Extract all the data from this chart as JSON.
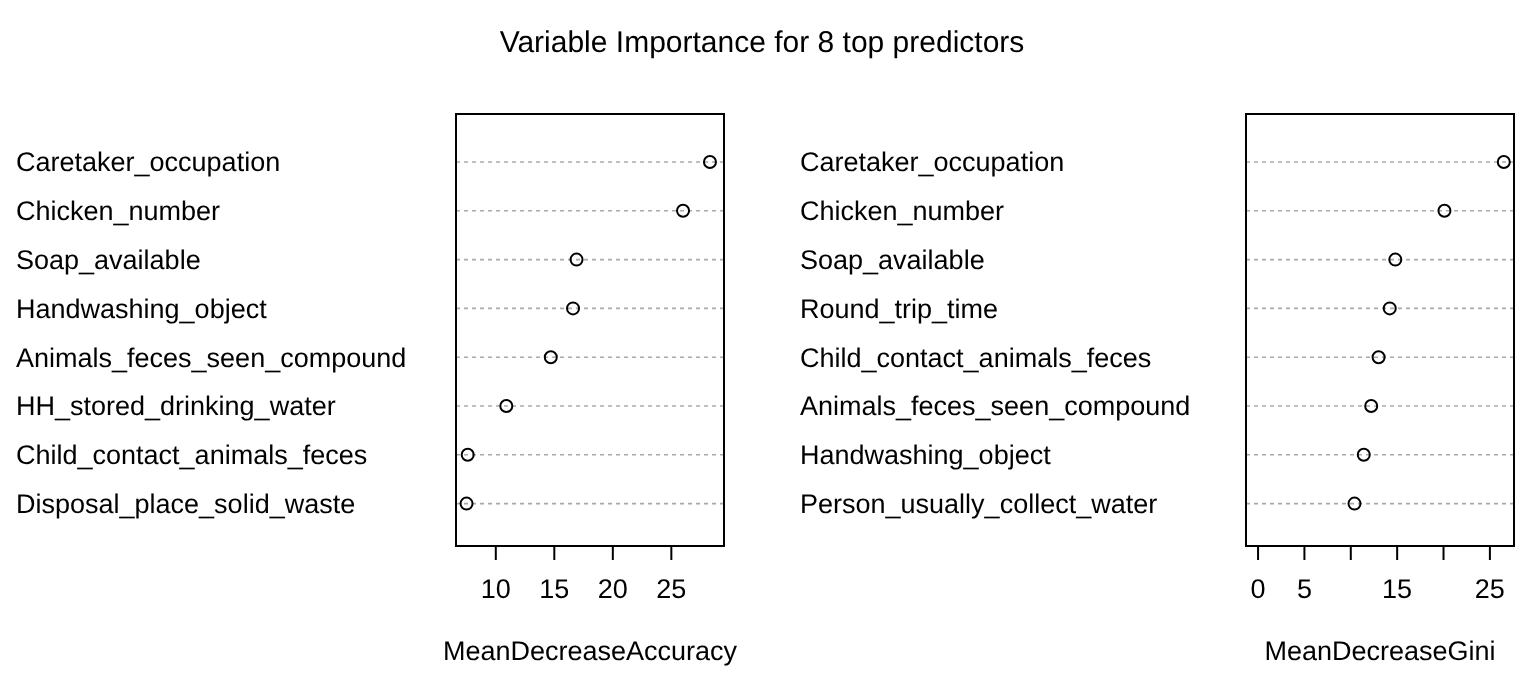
{
  "chart_data": [
    {
      "type": "scatter",
      "title": "Variable Importance for 8 top predictors",
      "orientation": "horizontal",
      "marker": "circle",
      "grid": "y",
      "xlabel": "MeanDecreaseAccuracy",
      "categories": [
        "Caretaker_occupation",
        "Chicken_number",
        "Soap_available",
        "Handwashing_object",
        "Animals_feces_seen_compound",
        "HH_stored_drinking_water",
        "Child_contact_animals_feces",
        "Disposal_place_solid_waste"
      ],
      "values": [
        28.3,
        26.0,
        16.9,
        16.6,
        14.7,
        10.9,
        7.6,
        7.5
      ],
      "color": "#000000",
      "xlim": [
        6.6,
        29.5
      ],
      "xticks": [
        10,
        15,
        20,
        25
      ]
    },
    {
      "type": "scatter",
      "orientation": "horizontal",
      "marker": "circle",
      "grid": "y",
      "xlabel": "MeanDecreaseGini",
      "categories": [
        "Caretaker_occupation",
        "Chicken_number",
        "Soap_available",
        "Round_trip_time",
        "Child_contact_animals_feces",
        "Animals_feces_seen_compound",
        "Handwashing_object",
        "Person_usually_collect_water"
      ],
      "values": [
        26.5,
        20.1,
        14.8,
        14.2,
        13.0,
        12.2,
        11.4,
        10.4
      ],
      "color": "#000000",
      "xlim": [
        -1.3,
        27.6
      ],
      "xticks": [
        0,
        5,
        {
          "value": 10,
          "label": null
        },
        15,
        {
          "value": 20,
          "label": null
        },
        25
      ]
    }
  ]
}
